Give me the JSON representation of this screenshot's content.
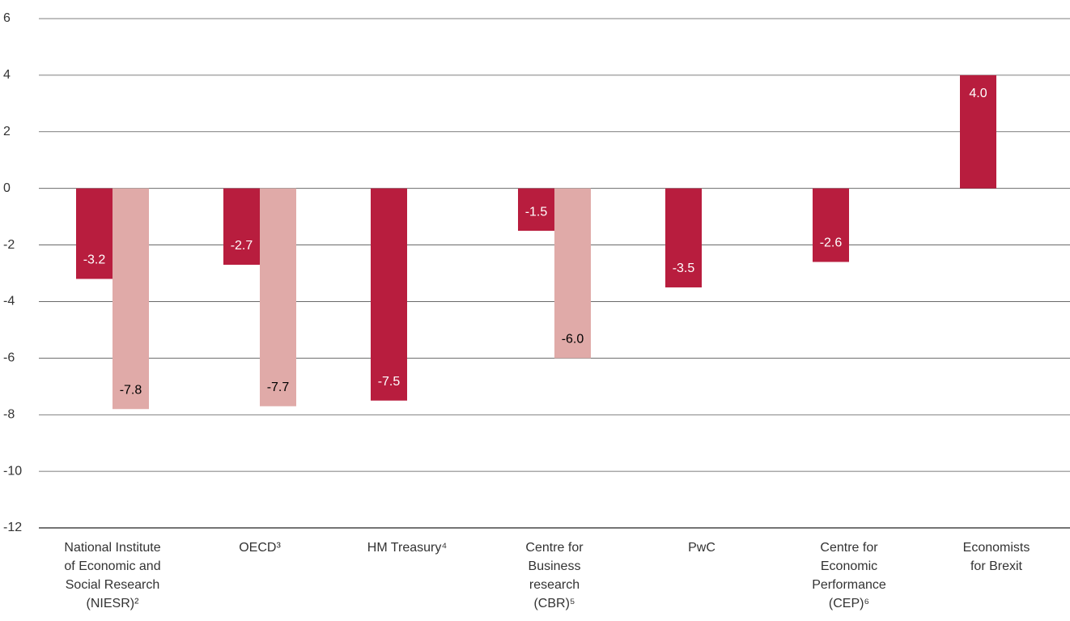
{
  "chart_data": {
    "type": "bar",
    "categories": [
      [
        "National Institute",
        "of Economic and",
        "Social Research",
        "(NIESR)²"
      ],
      [
        "OECD³"
      ],
      [
        "HM Treasury⁴"
      ],
      [
        "Centre for",
        "Business",
        "research",
        "(CBR)⁵"
      ],
      [
        "PwC"
      ],
      [
        "Centre for",
        "Economic",
        "Performance",
        "(CEP)⁶"
      ],
      [
        "Economists",
        "for Brexit"
      ]
    ],
    "series": [
      {
        "color": "#b81d3e",
        "label_color": "#ffffff",
        "values": [
          -3.2,
          -2.7,
          -7.5,
          -1.5,
          -3.5,
          -2.6,
          4
        ],
        "value_labels": [
          "-3.2",
          "-2.7",
          "-7.5",
          "-1.5",
          "-3.5",
          "-2.6",
          "4.0"
        ]
      },
      {
        "color": "#e0aaa8",
        "label_color": "#000000",
        "values": [
          -7.8,
          -7.7,
          null,
          -6,
          null,
          null,
          null
        ],
        "value_labels": [
          "-7.8",
          "-7.7",
          null,
          "-6.0",
          null,
          null,
          null
        ]
      }
    ],
    "ylim": [
      -12,
      6
    ],
    "yticks": [
      -12,
      -10,
      -8,
      -6,
      -4,
      -2,
      0,
      2,
      4,
      6
    ],
    "grid": true
  }
}
